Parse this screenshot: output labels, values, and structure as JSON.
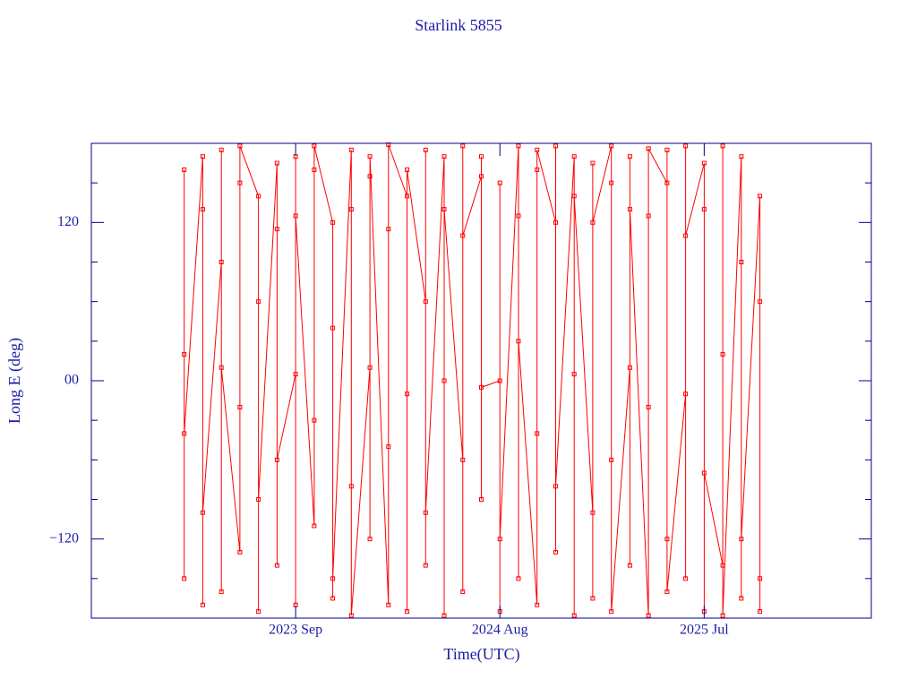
{
  "chart_data": {
    "type": "line",
    "title": "Starlink 5855",
    "xlabel": "Time(UTC)",
    "ylabel": "Long E (deg)",
    "xlim": [
      "2022-10",
      "2026-04"
    ],
    "xticks": [
      {
        "value": "2023-09",
        "label": "2023 Sep"
      },
      {
        "value": "2024-08",
        "label": "2024 Aug"
      },
      {
        "value": "2025-07",
        "label": "2025 Jul"
      }
    ],
    "ylim": [
      -180,
      180
    ],
    "yticks": [
      {
        "value": -120,
        "label": "−120"
      },
      {
        "value": 0,
        "label": "00"
      },
      120
    ],
    "yminorticks": [
      -150,
      -90,
      -60,
      -30,
      30,
      60,
      90,
      150
    ],
    "axis_color": "#00008b",
    "text_color": "#1c1ca8",
    "series": [
      {
        "color": "#ff0000",
        "x": [
          "2023-03",
          "2023-03",
          "2023-03",
          "2023-03",
          "2023-04",
          "2023-04",
          "2023-04",
          "2023-04",
          "2023-05",
          "2023-05",
          "2023-05",
          "2023-05",
          "2023-06",
          "2023-06",
          "2023-06",
          "2023-06",
          "2023-07",
          "2023-07",
          "2023-07",
          "2023-07",
          "2023-08",
          "2023-08",
          "2023-08",
          "2023-08",
          "2023-09",
          "2023-09",
          "2023-09",
          "2023-09",
          "2023-10",
          "2023-10",
          "2023-10",
          "2023-10",
          "2023-11",
          "2023-11",
          "2023-11",
          "2023-11",
          "2023-12",
          "2023-12",
          "2023-12",
          "2023-12",
          "2024-01",
          "2024-01",
          "2024-01",
          "2024-01",
          "2024-02",
          "2024-02",
          "2024-02",
          "2024-02",
          "2024-03",
          "2024-03",
          "2024-03",
          "2024-03",
          "2024-04",
          "2024-04",
          "2024-04",
          "2024-04",
          "2024-05",
          "2024-05",
          "2024-05",
          "2024-05",
          "2024-06",
          "2024-06",
          "2024-06",
          "2024-06",
          "2024-07",
          "2024-07",
          "2024-07",
          "2024-07",
          "2024-08",
          "2024-08",
          "2024-08",
          "2024-08",
          "2024-09",
          "2024-09",
          "2024-09",
          "2024-09",
          "2024-10",
          "2024-10",
          "2024-10",
          "2024-10",
          "2024-11",
          "2024-11",
          "2024-11",
          "2024-11",
          "2024-12",
          "2024-12",
          "2024-12",
          "2024-12",
          "2025-01",
          "2025-01",
          "2025-01",
          "2025-01",
          "2025-02",
          "2025-02",
          "2025-02",
          "2025-02",
          "2025-03",
          "2025-03",
          "2025-03",
          "2025-03",
          "2025-04",
          "2025-04",
          "2025-04",
          "2025-04",
          "2025-05",
          "2025-05",
          "2025-05",
          "2025-05",
          "2025-06",
          "2025-06",
          "2025-06",
          "2025-06",
          "2025-07",
          "2025-07",
          "2025-07",
          "2025-07",
          "2025-08",
          "2025-08",
          "2025-08",
          "2025-08",
          "2025-09",
          "2025-09",
          "2025-09",
          "2025-09",
          "2025-10",
          "2025-10",
          "2025-10",
          "2025-10"
        ],
        "values": [
          20,
          -150,
          160,
          -40,
          170,
          -170,
          130,
          -100,
          90,
          -160,
          175,
          10,
          -130,
          150,
          -20,
          178,
          140,
          -175,
          60,
          -90,
          165,
          -140,
          115,
          -60,
          5,
          170,
          -170,
          125,
          -110,
          160,
          -30,
          178,
          120,
          -165,
          40,
          -150,
          175,
          -80,
          130,
          -178,
          10,
          155,
          -120,
          170,
          -170,
          115,
          -50,
          179,
          140,
          -10,
          -175,
          160,
          60,
          -140,
          175,
          -100,
          170,
          -178,
          0,
          130,
          -60,
          178,
          -160,
          110,
          155,
          -90,
          170,
          -5,
          0,
          -175,
          150,
          -120,
          178,
          -150,
          125,
          30,
          -170,
          160,
          -40,
          175,
          120,
          -130,
          178,
          -80,
          170,
          5,
          -178,
          140,
          -100,
          165,
          -165,
          120,
          178,
          -60,
          150,
          -175,
          10,
          170,
          -140,
          130,
          -178,
          125,
          -20,
          176,
          150,
          -120,
          175,
          -160,
          -10,
          178,
          -150,
          110,
          165,
          -175,
          130,
          -70,
          -140,
          178,
          20,
          -178,
          170,
          -165,
          90,
          -120,
          140,
          -175,
          60,
          -150
        ]
      }
    ]
  }
}
